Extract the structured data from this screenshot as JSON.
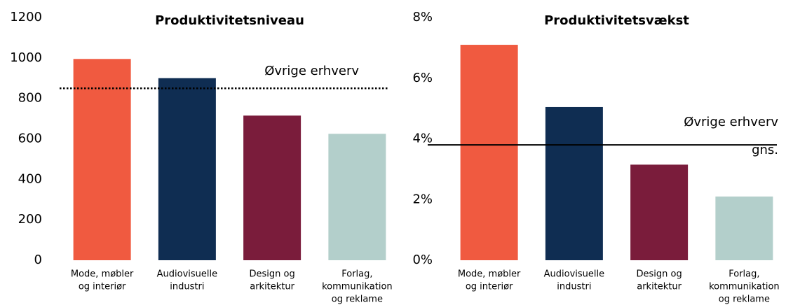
{
  "chart_data": [
    {
      "type": "bar",
      "title": "Produktivitetsniveau",
      "categories": [
        [
          "Mode, møbler",
          "og interiør"
        ],
        [
          "Audiovisuelle",
          "industri"
        ],
        [
          "Design og",
          "arkitektur"
        ],
        [
          "Forlag,",
          "kommunikation",
          "og reklame"
        ]
      ],
      "values": [
        995,
        900,
        715,
        625
      ],
      "colors": [
        "#f05a40",
        "#0f2d52",
        "#7a1c3b",
        "#b3cfcb"
      ],
      "ylim": [
        0,
        1200
      ],
      "yticks": [
        0,
        200,
        400,
        600,
        800,
        1000,
        1200
      ],
      "reference": {
        "value": 850,
        "label": [
          "Øvrige erhverv"
        ],
        "style": "dotted"
      }
    },
    {
      "type": "bar",
      "title": "Produktivitetsvækst",
      "categories": [
        [
          "Mode, møbler",
          "og interiør"
        ],
        [
          "Audiovisuelle",
          "industri"
        ],
        [
          "Design og",
          "arkitektur"
        ],
        [
          "Forlag,",
          "kommunikation",
          "og reklame"
        ]
      ],
      "values": [
        7.1,
        5.05,
        3.15,
        2.1
      ],
      "colors": [
        "#f05a40",
        "#0f2d52",
        "#7a1c3b",
        "#b3cfcb"
      ],
      "ylim": [
        0,
        8
      ],
      "yticks": [
        {
          "value": 0,
          "label": "0%"
        },
        {
          "value": 2,
          "label": "2%"
        },
        {
          "value": 4,
          "label": "4%"
        },
        {
          "value": 6,
          "label": "6%"
        },
        {
          "value": 8,
          "label": "8%"
        }
      ],
      "reference": {
        "value": 3.8,
        "label": [
          "Øvrige erhverv",
          "gns."
        ],
        "style": "solid"
      }
    }
  ]
}
